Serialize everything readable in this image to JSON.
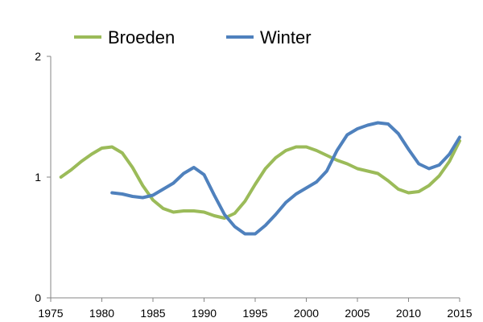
{
  "chart_data": {
    "type": "line",
    "title": "",
    "xlabel": "",
    "ylabel": "",
    "xlim": [
      1975,
      2015
    ],
    "ylim": [
      0,
      2
    ],
    "xticks": [
      1975,
      1980,
      1985,
      1990,
      1995,
      2000,
      2005,
      2010,
      2015
    ],
    "yticks": [
      0,
      1,
      2
    ],
    "grid": false,
    "legend_position": "top",
    "series": [
      {
        "name": "Broeden",
        "color": "#9BBB59",
        "x": [
          1976,
          1977,
          1978,
          1979,
          1980,
          1981,
          1982,
          1983,
          1984,
          1985,
          1986,
          1987,
          1988,
          1989,
          1990,
          1991,
          1992,
          1993,
          1994,
          1995,
          1996,
          1997,
          1998,
          1999,
          2000,
          2001,
          2002,
          2003,
          2004,
          2005,
          2006,
          2007,
          2008,
          2009,
          2010,
          2011,
          2012,
          2013,
          2014,
          2015
        ],
        "y": [
          1.0,
          1.06,
          1.13,
          1.19,
          1.24,
          1.25,
          1.2,
          1.08,
          0.93,
          0.81,
          0.74,
          0.71,
          0.72,
          0.72,
          0.71,
          0.68,
          0.66,
          0.7,
          0.8,
          0.94,
          1.07,
          1.16,
          1.22,
          1.25,
          1.25,
          1.22,
          1.18,
          1.14,
          1.11,
          1.07,
          1.05,
          1.03,
          0.97,
          0.9,
          0.87,
          0.88,
          0.93,
          1.01,
          1.13,
          1.3
        ]
      },
      {
        "name": "Winter",
        "color": "#4F81BD",
        "x": [
          1981,
          1982,
          1983,
          1984,
          1985,
          1986,
          1987,
          1988,
          1989,
          1990,
          1991,
          1992,
          1993,
          1994,
          1995,
          1996,
          1997,
          1998,
          1999,
          2000,
          2001,
          2002,
          2003,
          2004,
          2005,
          2006,
          2007,
          2008,
          2009,
          2010,
          2011,
          2012,
          2013,
          2014,
          2015
        ],
        "y": [
          0.87,
          0.86,
          0.84,
          0.83,
          0.85,
          0.9,
          0.95,
          1.03,
          1.08,
          1.02,
          0.85,
          0.69,
          0.59,
          0.53,
          0.53,
          0.6,
          0.69,
          0.79,
          0.86,
          0.91,
          0.96,
          1.05,
          1.22,
          1.35,
          1.4,
          1.43,
          1.45,
          1.44,
          1.36,
          1.23,
          1.11,
          1.07,
          1.1,
          1.19,
          1.33
        ]
      }
    ]
  }
}
